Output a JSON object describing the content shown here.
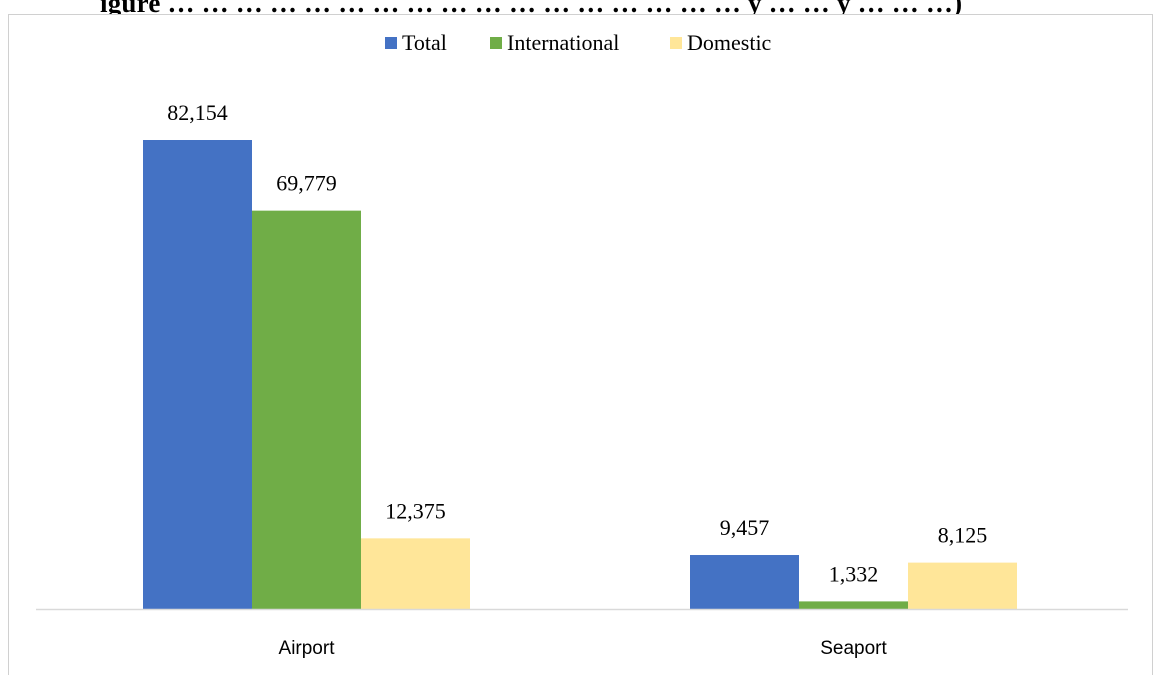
{
  "header": {
    "title_fragment": "igure … … … … … … … … … … … … … … … … … y … … y … … …)"
  },
  "chart_data": {
    "type": "bar",
    "categories": [
      "Airport",
      "Seaport"
    ],
    "series": [
      {
        "name": "Total",
        "values": [
          82154,
          9457
        ],
        "labels": [
          "82,154",
          "9,457"
        ],
        "color": "#4472C4"
      },
      {
        "name": "International",
        "values": [
          69779,
          1332
        ],
        "labels": [
          "69,779",
          "1,332"
        ],
        "color": "#70AD47"
      },
      {
        "name": "Domestic",
        "values": [
          12375,
          8125
        ],
        "labels": [
          "12,375",
          "8,125"
        ],
        "color": "#FFE699"
      }
    ],
    "title": "",
    "xlabel": "",
    "ylabel": "",
    "ylim": [
      0,
      90000
    ],
    "grid": false,
    "legend": "top-center",
    "axis_color": "#d9d9d9"
  }
}
